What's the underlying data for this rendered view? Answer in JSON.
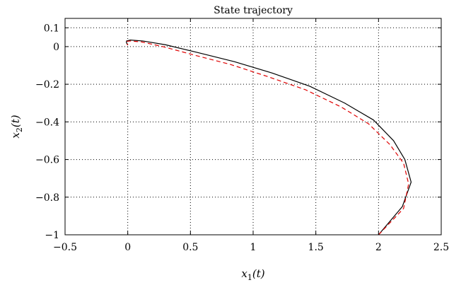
{
  "chart_data": {
    "type": "line",
    "title": "State trajectory",
    "xlabel": "x1(t)",
    "ylabel": "x2(t)",
    "xlim": [
      -0.5,
      2.5
    ],
    "ylim": [
      -1,
      0.15
    ],
    "xticks": [
      -0.5,
      0,
      0.5,
      1,
      1.5,
      2,
      2.5
    ],
    "xtick_labels": [
      "−0.5",
      "0",
      "0.5",
      "1",
      "1.5",
      "2",
      "2.5"
    ],
    "yticks": [
      -1,
      -0.8,
      -0.6,
      -0.4,
      -0.2,
      0,
      0.1
    ],
    "ytick_labels": [
      "−1",
      "−0.8",
      "−0.6",
      "−0.4",
      "−0.2",
      "0",
      "0.1"
    ],
    "grid": true,
    "series": [
      {
        "color": "#000000",
        "dash": "solid",
        "x": [
          2.0,
          2.19,
          2.26,
          2.21,
          2.12,
          1.96,
          1.73,
          1.45,
          1.15,
          0.85,
          0.55,
          0.3,
          0.12,
          0.02,
          -0.01,
          -0.01,
          0.0
        ],
        "y": [
          -1.0,
          -0.85,
          -0.72,
          -0.6,
          -0.5,
          -0.39,
          -0.3,
          -0.21,
          -0.14,
          -0.08,
          -0.03,
          0.01,
          0.03,
          0.035,
          0.03,
          0.02,
          0.01
        ]
      },
      {
        "color": "#e00000",
        "dash": "dashed",
        "x": [
          2.0,
          2.2,
          2.24,
          2.2,
          2.09,
          1.92,
          1.7,
          1.42,
          1.12,
          0.82,
          0.53,
          0.28,
          0.11,
          0.02,
          -0.01,
          -0.01,
          0.0
        ],
        "y": [
          -1.0,
          -0.86,
          -0.73,
          -0.62,
          -0.52,
          -0.41,
          -0.32,
          -0.23,
          -0.16,
          -0.095,
          -0.045,
          0.0,
          0.025,
          0.03,
          0.028,
          0.018,
          0.008
        ]
      }
    ]
  }
}
